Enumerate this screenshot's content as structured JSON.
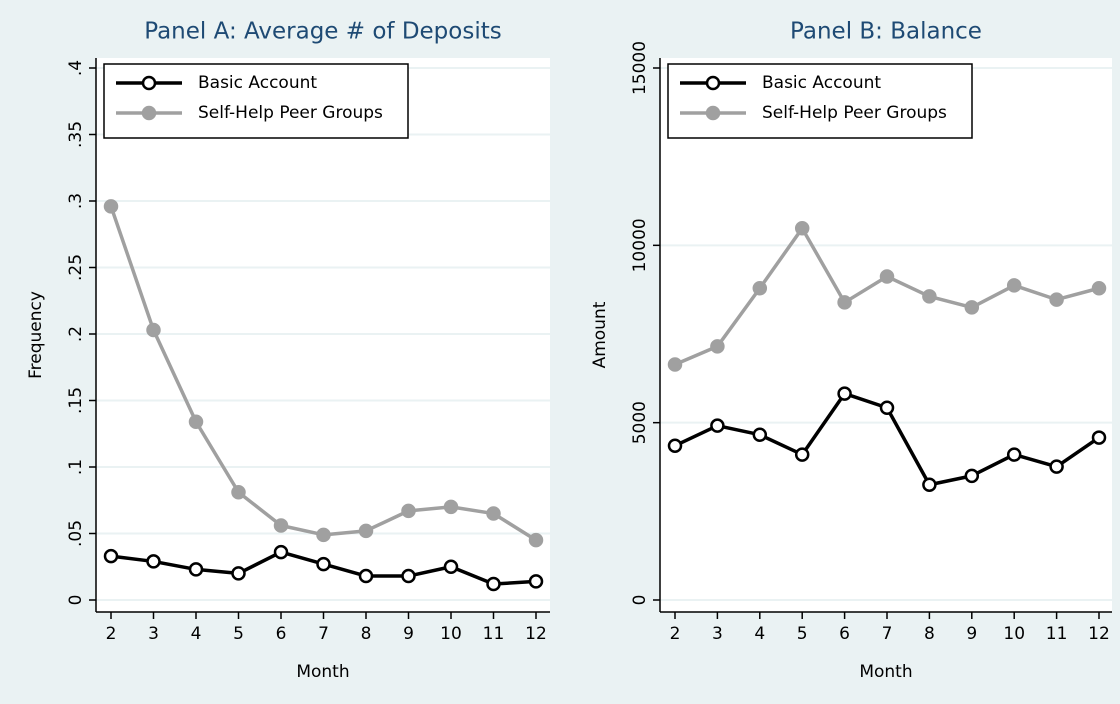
{
  "chart_data": [
    {
      "type": "line",
      "title": "Panel A: Average # of Deposits",
      "xlabel": "Month",
      "ylabel": "Frequency",
      "x": [
        2,
        3,
        4,
        5,
        6,
        7,
        8,
        9,
        10,
        11,
        12
      ],
      "series": [
        {
          "name": "Basic Account",
          "color": "#000000",
          "marker": "hollow",
          "values": [
            0.033,
            0.029,
            0.023,
            0.02,
            0.036,
            0.027,
            0.018,
            0.018,
            0.025,
            0.012,
            0.014
          ]
        },
        {
          "name": "Self-Help Peer Groups",
          "color": "#a0a0a0",
          "marker": "filled",
          "values": [
            0.296,
            0.203,
            0.134,
            0.081,
            0.056,
            0.049,
            0.052,
            0.067,
            0.07,
            0.065,
            0.045
          ]
        }
      ],
      "xlim": [
        2,
        12
      ],
      "xticks": [
        2,
        3,
        4,
        5,
        6,
        7,
        8,
        9,
        10,
        11,
        12
      ],
      "ylim": [
        0,
        0.4
      ],
      "yticks": [
        0,
        {
          "value": 0.05,
          "label": ".05"
        },
        {
          "value": 0.1,
          "label": ".1"
        },
        {
          "value": 0.15,
          "label": ".15"
        },
        {
          "value": 0.2,
          "label": ".2"
        },
        {
          "value": 0.25,
          "label": ".25"
        },
        {
          "value": 0.3,
          "label": ".3"
        },
        {
          "value": 0.35,
          "label": ".35"
        },
        {
          "value": 0.4,
          "label": ".4"
        }
      ],
      "grid": true,
      "legend": "top-left"
    },
    {
      "type": "line",
      "title": "Panel B: Balance",
      "xlabel": "Month",
      "ylabel": "Amount",
      "x": [
        2,
        3,
        4,
        5,
        6,
        7,
        8,
        9,
        10,
        11,
        12
      ],
      "series": [
        {
          "name": "Basic Account",
          "color": "#000000",
          "marker": "hollow",
          "values": [
            4350,
            4915,
            4660,
            4100,
            5820,
            5420,
            3250,
            3500,
            4100,
            3760,
            4580
          ]
        },
        {
          "name": "Self-Help Peer Groups",
          "color": "#a0a0a0",
          "marker": "filled",
          "values": [
            6640,
            7150,
            8790,
            10480,
            8390,
            9120,
            8560,
            8250,
            8870,
            8470,
            8790
          ]
        }
      ],
      "xlim": [
        2,
        12
      ],
      "xticks": [
        2,
        3,
        4,
        5,
        6,
        7,
        8,
        9,
        10,
        11,
        12
      ],
      "ylim": [
        0,
        15000
      ],
      "yticks": [
        0,
        5000,
        10000,
        15000
      ],
      "grid": true,
      "legend": "top-left"
    }
  ]
}
